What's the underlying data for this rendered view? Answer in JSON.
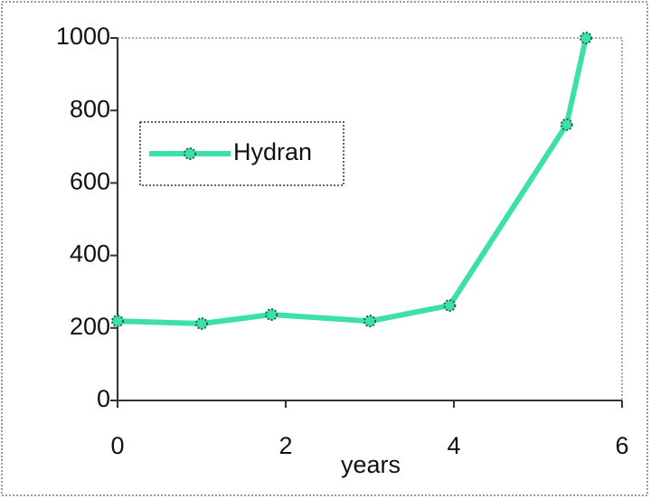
{
  "chart_data": {
    "type": "line",
    "x_label": "years",
    "xlim": [
      0,
      6
    ],
    "xticks": [
      0,
      2,
      4,
      6
    ],
    "ylim": [
      0,
      1000
    ],
    "yticks": [
      0,
      200,
      400,
      600,
      800,
      1000
    ],
    "legend": "upper left",
    "series": [
      {
        "name": "Hydran",
        "color": "#3de0a8",
        "x": [
          0,
          1,
          1.83,
          3,
          3.95,
          5.34,
          5.57
        ],
        "values": [
          219,
          212,
          237,
          219,
          262,
          761,
          1000
        ]
      }
    ]
  }
}
